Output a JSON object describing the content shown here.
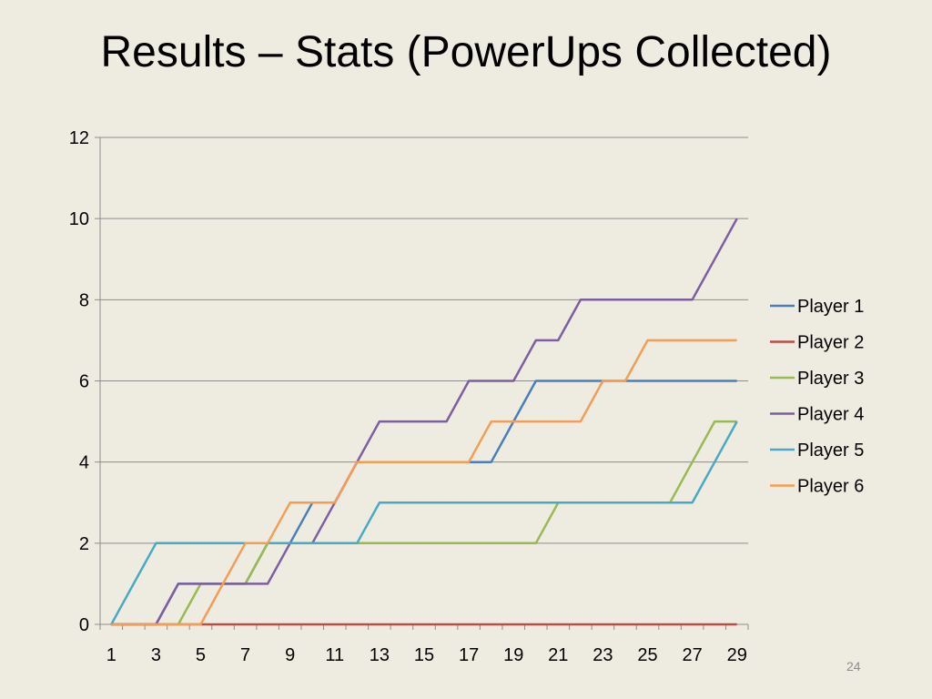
{
  "slide": {
    "title": "Results – Stats (PowerUps Collected)",
    "slide_number": "24"
  },
  "chart_data": {
    "type": "line",
    "title": "",
    "xlabel": "",
    "ylabel": "",
    "x": [
      1,
      2,
      3,
      4,
      5,
      6,
      7,
      8,
      9,
      10,
      11,
      12,
      13,
      14,
      15,
      16,
      17,
      18,
      19,
      20,
      21,
      22,
      23,
      24,
      25,
      26,
      27,
      28,
      29
    ],
    "x_tick_labels": [
      "1",
      "3",
      "5",
      "7",
      "9",
      "11",
      "13",
      "15",
      "17",
      "19",
      "21",
      "23",
      "25",
      "27",
      "29"
    ],
    "ylim": [
      0,
      12
    ],
    "y_ticks": [
      0,
      2,
      4,
      6,
      8,
      10,
      12
    ],
    "grid": "horizontal",
    "legend_position": "right",
    "series": [
      {
        "name": "Player 1",
        "color": "#4a7ebb",
        "values": [
          0,
          0,
          0,
          1,
          1,
          1,
          1,
          2,
          2,
          3,
          3,
          4,
          4,
          4,
          4,
          4,
          4,
          4,
          5,
          6,
          6,
          6,
          6,
          6,
          6,
          6,
          6,
          6,
          6
        ]
      },
      {
        "name": "Player 2",
        "color": "#be4b48",
        "values": [
          0,
          0,
          0,
          0,
          0,
          0,
          0,
          0,
          0,
          0,
          0,
          0,
          0,
          0,
          0,
          0,
          0,
          0,
          0,
          0,
          0,
          0,
          0,
          0,
          0,
          0,
          0,
          0,
          0
        ]
      },
      {
        "name": "Player 3",
        "color": "#98b954",
        "values": [
          0,
          0,
          0,
          0,
          1,
          1,
          1,
          2,
          2,
          2,
          2,
          2,
          2,
          2,
          2,
          2,
          2,
          2,
          2,
          2,
          3,
          3,
          3,
          3,
          3,
          3,
          4,
          5,
          5
        ]
      },
      {
        "name": "Player 4",
        "color": "#7d5fa0",
        "values": [
          0,
          0,
          0,
          1,
          1,
          1,
          1,
          1,
          2,
          2,
          3,
          4,
          5,
          5,
          5,
          5,
          6,
          6,
          6,
          7,
          7,
          8,
          8,
          8,
          8,
          8,
          8,
          9,
          10
        ]
      },
      {
        "name": "Player 5",
        "color": "#46aac5",
        "values": [
          0,
          1,
          2,
          2,
          2,
          2,
          2,
          2,
          2,
          2,
          2,
          2,
          3,
          3,
          3,
          3,
          3,
          3,
          3,
          3,
          3,
          3,
          3,
          3,
          3,
          3,
          3,
          4,
          5
        ]
      },
      {
        "name": "Player 6",
        "color": "#f59d56",
        "values": [
          0,
          0,
          0,
          0,
          0,
          1,
          2,
          2,
          3,
          3,
          3,
          4,
          4,
          4,
          4,
          4,
          4,
          5,
          5,
          5,
          5,
          5,
          6,
          6,
          7,
          7,
          7,
          7,
          7
        ]
      }
    ]
  }
}
